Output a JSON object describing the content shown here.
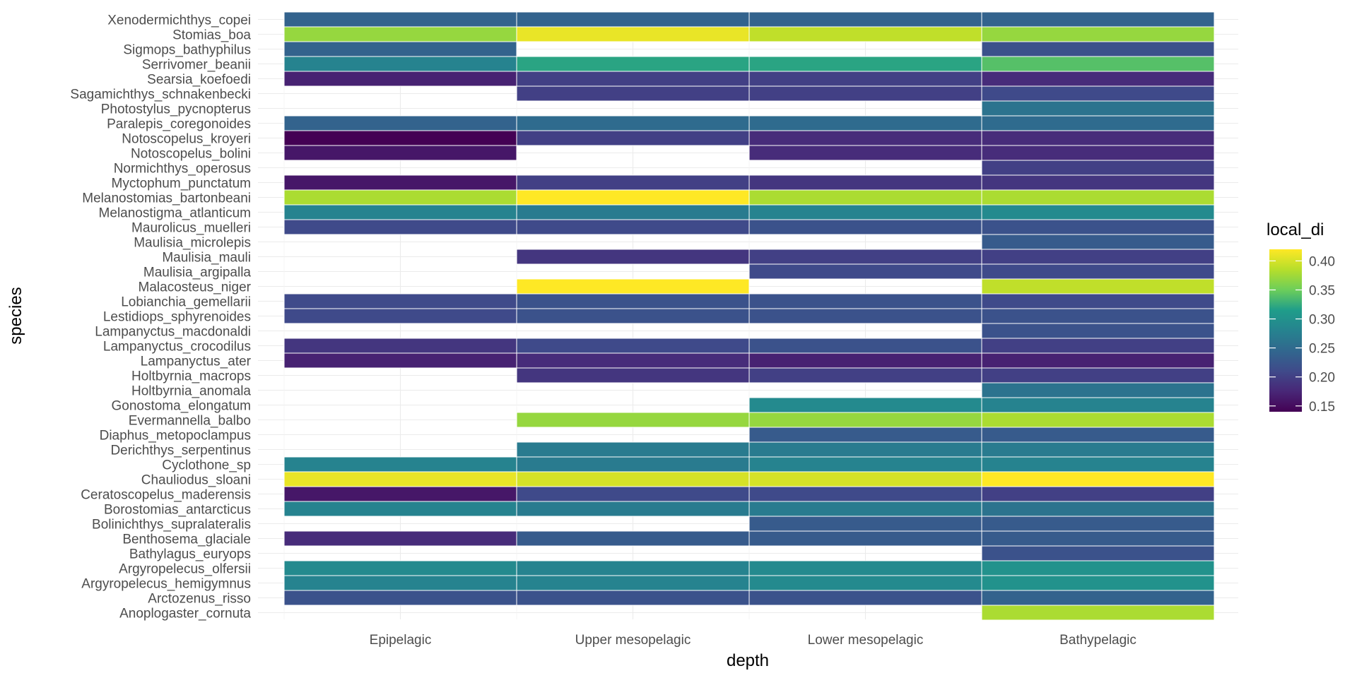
{
  "chart_data": {
    "type": "heatmap",
    "title": "",
    "xlabel": "depth",
    "ylabel": "species",
    "x_categories": [
      "Epipelagic",
      "Upper mesopelagic",
      "Lower mesopelagic",
      "Bathypelagic"
    ],
    "y_categories": [
      "Xenodermichthys_copei",
      "Stomias_boa",
      "Sigmops_bathyphilus",
      "Serrivomer_beanii",
      "Searsia_koefoedi",
      "Sagamichthys_schnakenbecki",
      "Photostylus_pycnopterus",
      "Paralepis_coregonoides",
      "Notoscopelus_kroyeri",
      "Notoscopelus_bolini",
      "Normichthys_operosus",
      "Myctophum_punctatum",
      "Melanostomias_bartonbeani",
      "Melanostigma_atlanticum",
      "Maurolicus_muelleri",
      "Maulisia_microlepis",
      "Maulisia_mauli",
      "Maulisia_argipalla",
      "Malacosteus_niger",
      "Lobianchia_gemellarii",
      "Lestidiops_sphyrenoides",
      "Lampanyctus_macdonaldi",
      "Lampanyctus_crocodilus",
      "Lampanyctus_ater",
      "Holtbyrnia_macrops",
      "Holtbyrnia_anomala",
      "Gonostoma_elongatum",
      "Evermannella_balbo",
      "Diaphus_metopoclampus",
      "Derichthys_serpentinus",
      "Cyclothone_sp",
      "Chauliodus_sloani",
      "Ceratoscopelus_maderensis",
      "Borostomias_antarcticus",
      "Bolinichthys_supralateralis",
      "Benthosema_glaciale",
      "Bathylagus_euryops",
      "Argyropelecus_olfersii",
      "Argyropelecus_hemigymnus",
      "Arctozenus_risso",
      "Anoplogaster_cornuta"
    ],
    "values": [
      [
        0.24,
        0.24,
        0.24,
        0.24
      ],
      [
        0.37,
        0.41,
        0.39,
        0.37
      ],
      [
        0.24,
        null,
        null,
        0.22
      ],
      [
        0.28,
        0.32,
        0.32,
        0.34
      ],
      [
        0.17,
        0.2,
        0.2,
        0.18
      ],
      [
        null,
        0.2,
        0.2,
        0.21
      ],
      [
        null,
        null,
        null,
        0.26
      ],
      [
        0.24,
        0.25,
        0.25,
        0.25
      ],
      [
        0.14,
        0.2,
        0.18,
        0.18
      ],
      [
        0.16,
        null,
        0.18,
        0.18
      ],
      [
        null,
        null,
        null,
        0.2
      ],
      [
        0.16,
        0.2,
        0.19,
        0.19
      ],
      [
        0.38,
        0.42,
        0.38,
        0.38
      ],
      [
        0.28,
        0.27,
        0.28,
        0.29
      ],
      [
        0.21,
        0.21,
        0.22,
        0.22
      ],
      [
        null,
        null,
        null,
        0.23
      ],
      [
        null,
        0.19,
        0.2,
        0.2
      ],
      [
        null,
        null,
        0.21,
        0.21
      ],
      [
        null,
        0.42,
        null,
        0.39
      ],
      [
        0.21,
        0.22,
        0.22,
        0.21
      ],
      [
        0.21,
        0.22,
        0.22,
        0.22
      ],
      [
        null,
        null,
        null,
        0.22
      ],
      [
        0.19,
        0.21,
        0.22,
        0.2
      ],
      [
        0.17,
        0.18,
        0.17,
        0.17
      ],
      [
        null,
        0.19,
        0.2,
        0.2
      ],
      [
        null,
        null,
        null,
        0.26
      ],
      [
        null,
        null,
        0.29,
        0.28
      ],
      [
        null,
        0.37,
        0.37,
        0.38
      ],
      [
        null,
        null,
        0.23,
        0.23
      ],
      [
        null,
        0.27,
        0.27,
        0.27
      ],
      [
        0.28,
        0.27,
        0.28,
        0.28
      ],
      [
        0.41,
        0.4,
        0.4,
        0.42
      ],
      [
        0.16,
        0.21,
        0.21,
        0.2
      ],
      [
        0.28,
        0.27,
        0.27,
        0.26
      ],
      [
        null,
        null,
        0.23,
        0.23
      ],
      [
        0.18,
        0.23,
        0.23,
        0.23
      ],
      [
        null,
        null,
        null,
        0.22
      ],
      [
        0.29,
        0.28,
        0.29,
        0.3
      ],
      [
        0.28,
        0.28,
        0.29,
        0.3
      ],
      [
        0.22,
        0.22,
        0.22,
        0.24
      ],
      [
        null,
        null,
        null,
        0.38
      ]
    ],
    "legend": {
      "title": "local_di",
      "position": "right",
      "ticks": [
        0.15,
        0.2,
        0.25,
        0.3,
        0.35,
        0.4
      ],
      "tick_labels": [
        "0.15",
        "0.20",
        "0.25",
        "0.30",
        "0.35",
        "0.40"
      ],
      "range": [
        0.14,
        0.42
      ],
      "palette": [
        "#440154",
        "#482777",
        "#3f4a8a",
        "#31678e",
        "#26838f",
        "#1f9d8a",
        "#6cce5a",
        "#b6de2b",
        "#fee825"
      ]
    },
    "grid": true
  }
}
